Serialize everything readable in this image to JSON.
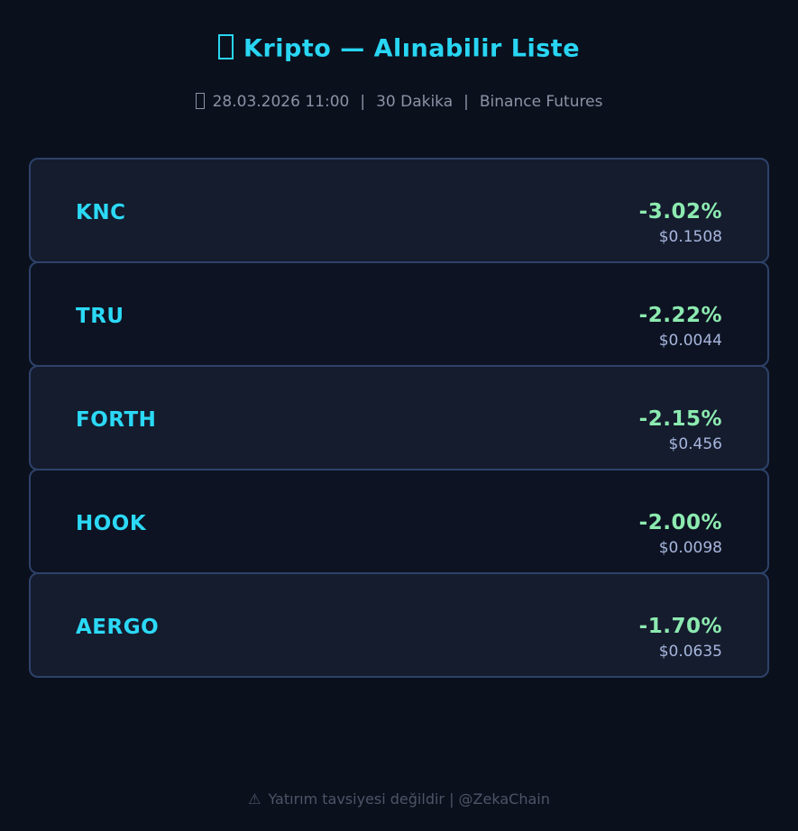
{
  "header": {
    "title": "Kripto — Alınabilir Liste",
    "title_icon": "missing-emoji-box",
    "meta": {
      "icon": "missing-emoji-box",
      "datetime": "28.03.2026 11:00",
      "separator": "|",
      "timeframe": "30 Dakika",
      "source": "Binance Futures"
    }
  },
  "coins": [
    {
      "symbol": "KNC",
      "change": "-3.02%",
      "price": "$0.1508"
    },
    {
      "symbol": "TRU",
      "change": "-2.22%",
      "price": "$0.0044"
    },
    {
      "symbol": "FORTH",
      "change": "-2.15%",
      "price": "$0.456"
    },
    {
      "symbol": "HOOK",
      "change": "-2.00%",
      "price": "$0.0098"
    },
    {
      "symbol": "AERGO",
      "change": "-1.70%",
      "price": "$0.0635"
    }
  ],
  "footer": {
    "warning_icon": "⚠",
    "text": "Yatırım tavsiyesi değildir | @ZekaChain"
  },
  "colors": {
    "page_background": "#0b101d",
    "card_background_light": "#151c2e",
    "card_background_dark": "#0d1322",
    "card_border": "#2d4269",
    "accent_cyan": "#28d6f3",
    "change_green": "#8ceab0",
    "price_blue": "#a7b6dd",
    "meta_gray": "#8a93a5",
    "footer_gray": "#4c5566"
  }
}
